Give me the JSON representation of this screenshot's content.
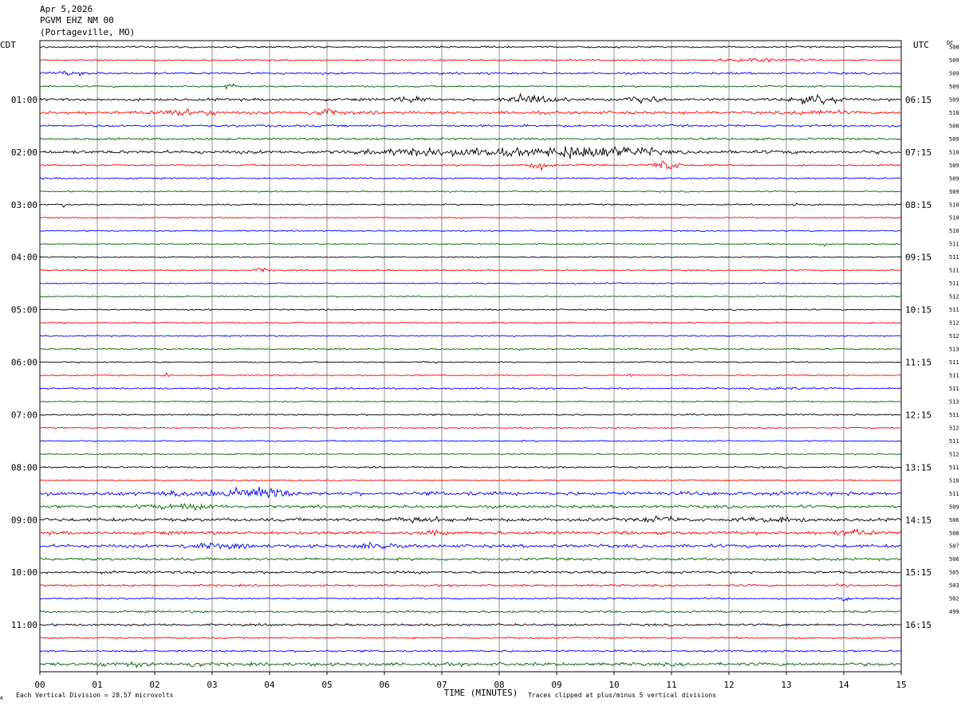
{
  "header": {
    "date": "Apr 5,2026",
    "station": "PGVM EHZ NM 00",
    "location": "(Portageville, MO)"
  },
  "left_tz": "CDT",
  "right_tz": "UTC",
  "dc_header": "DC",
  "colors": {
    "black": "#000000",
    "red": "#ff0000",
    "blue": "#0000ff",
    "green": "#006400",
    "grid": "#777777"
  },
  "footer": {
    "scale_note": "Each Vertical Division = 28.57 microvolts",
    "clip_note": "Traces clipped at plus/minus 5 vertical divisions",
    "corner_mark": "A"
  },
  "chart_data": {
    "type": "line",
    "xlabel": "TIME (MINUTES)",
    "xlim": [
      0,
      15
    ],
    "x_ticks": [
      "00",
      "01",
      "02",
      "03",
      "04",
      "05",
      "06",
      "07",
      "08",
      "09",
      "10",
      "11",
      "12",
      "13",
      "14",
      "15"
    ],
    "series_colors_cycle": [
      "black",
      "red",
      "blue",
      "green"
    ],
    "left_hour_labels": [
      "01:00",
      "02:00",
      "03:00",
      "04:00",
      "05:00",
      "06:00",
      "07:00",
      "08:00",
      "09:00",
      "10:00",
      "11:00"
    ],
    "right_hour_labels": [
      "06:15",
      "07:15",
      "08:15",
      "09:15",
      "10:15",
      "11:15",
      "12:15",
      "13:15",
      "14:15",
      "15:15",
      "16:15"
    ],
    "hour_label_trace_index": [
      4,
      8,
      12,
      16,
      20,
      24,
      28,
      32,
      36,
      40,
      44
    ],
    "trace_count": 48,
    "dc_offsets": [
      "508",
      "509",
      "509",
      "509",
      "509",
      "510",
      "508",
      "509",
      "510",
      "509",
      "509",
      "509",
      "510",
      "510",
      "510",
      "511",
      "511",
      "511",
      "511",
      "512",
      "511",
      "512",
      "512",
      "513",
      "511",
      "511",
      "511",
      "513",
      "511",
      "512",
      "511",
      "512",
      "511",
      "510",
      "511",
      "509",
      "506",
      "508",
      "507",
      "506",
      "505",
      "503",
      "502",
      "499",
      "",
      "",
      "",
      ""
    ],
    "trace_activity": [
      {
        "trace": 0,
        "noise": 1.0,
        "events": []
      },
      {
        "trace": 1,
        "noise": 1.0,
        "events": [
          {
            "min": 12.5,
            "amp": 2.5,
            "dur": 2.2
          }
        ]
      },
      {
        "trace": 2,
        "noise": 1.3,
        "events": [
          {
            "min": 0.5,
            "amp": 2,
            "dur": 1
          }
        ]
      },
      {
        "trace": 3,
        "noise": 1.0,
        "events": [
          {
            "min": 3.3,
            "amp": 5,
            "dur": 0.3
          }
        ]
      },
      {
        "trace": 4,
        "noise": 1.6,
        "events": [
          {
            "min": 6.5,
            "amp": 4,
            "dur": 1
          },
          {
            "min": 8.6,
            "amp": 6,
            "dur": 1.4
          },
          {
            "min": 10.5,
            "amp": 4,
            "dur": 1
          },
          {
            "min": 13.5,
            "amp": 6,
            "dur": 1.2
          }
        ]
      },
      {
        "trace": 5,
        "noise": 1.8,
        "events": [
          {
            "min": 2.5,
            "amp": 4,
            "dur": 1.6
          },
          {
            "min": 5.0,
            "amp": 3,
            "dur": 1
          },
          {
            "min": 13.5,
            "amp": 3,
            "dur": 1.2
          }
        ]
      },
      {
        "trace": 6,
        "noise": 1.4,
        "events": []
      },
      {
        "trace": 7,
        "noise": 1.3,
        "events": []
      },
      {
        "trace": 8,
        "noise": 2.0,
        "events": [
          {
            "min": 7.5,
            "amp": 6,
            "dur": 4.5
          },
          {
            "min": 9.8,
            "amp": 9,
            "dur": 2.6
          }
        ]
      },
      {
        "trace": 9,
        "noise": 1.0,
        "events": [
          {
            "min": 8.7,
            "amp": 7,
            "dur": 0.6
          },
          {
            "min": 10.9,
            "amp": 9,
            "dur": 0.7
          }
        ]
      },
      {
        "trace": 10,
        "noise": 1.0,
        "events": []
      },
      {
        "trace": 11,
        "noise": 0.8,
        "events": []
      },
      {
        "trace": 12,
        "noise": 0.9,
        "events": [
          {
            "min": 0.4,
            "amp": 8,
            "dur": 0.08
          },
          {
            "min": 13.2,
            "amp": 4,
            "dur": 0.3
          }
        ]
      },
      {
        "trace": 13,
        "noise": 0.8,
        "events": []
      },
      {
        "trace": 14,
        "noise": 0.8,
        "events": []
      },
      {
        "trace": 15,
        "noise": 0.8,
        "events": [
          {
            "min": 13.6,
            "amp": 3,
            "dur": 0.3
          }
        ]
      },
      {
        "trace": 16,
        "noise": 0.8,
        "events": []
      },
      {
        "trace": 17,
        "noise": 0.8,
        "events": [
          {
            "min": 3.9,
            "amp": 3,
            "dur": 0.5
          }
        ]
      },
      {
        "trace": 18,
        "noise": 0.8,
        "events": []
      },
      {
        "trace": 19,
        "noise": 0.8,
        "events": []
      },
      {
        "trace": 20,
        "noise": 0.8,
        "events": []
      },
      {
        "trace": 21,
        "noise": 0.8,
        "events": []
      },
      {
        "trace": 22,
        "noise": 0.8,
        "events": []
      },
      {
        "trace": 23,
        "noise": 0.9,
        "events": [
          {
            "min": 11.4,
            "amp": 2,
            "dur": 0.6
          }
        ]
      },
      {
        "trace": 24,
        "noise": 0.8,
        "events": [
          {
            "min": 6.8,
            "amp": 2,
            "dur": 0.4
          }
        ]
      },
      {
        "trace": 25,
        "noise": 0.8,
        "events": [
          {
            "min": 2.2,
            "amp": 3,
            "dur": 0.2
          },
          {
            "min": 10.3,
            "amp": 2,
            "dur": 0.2
          }
        ]
      },
      {
        "trace": 26,
        "noise": 1.0,
        "events": [
          {
            "min": 13.0,
            "amp": 2,
            "dur": 1
          }
        ]
      },
      {
        "trace": 27,
        "noise": 0.8,
        "events": []
      },
      {
        "trace": 28,
        "noise": 1.0,
        "events": []
      },
      {
        "trace": 29,
        "noise": 0.8,
        "events": []
      },
      {
        "trace": 30,
        "noise": 0.8,
        "events": []
      },
      {
        "trace": 31,
        "noise": 0.8,
        "events": []
      },
      {
        "trace": 32,
        "noise": 1.0,
        "events": []
      },
      {
        "trace": 33,
        "noise": 0.8,
        "events": []
      },
      {
        "trace": 34,
        "noise": 2.2,
        "events": [
          {
            "min": 3.0,
            "amp": 5,
            "dur": 2.2
          },
          {
            "min": 3.9,
            "amp": 9,
            "dur": 1.2
          }
        ]
      },
      {
        "trace": 35,
        "noise": 1.8,
        "events": [
          {
            "min": 2.5,
            "amp": 3,
            "dur": 2
          }
        ]
      },
      {
        "trace": 36,
        "noise": 2.0,
        "events": [
          {
            "min": 6.5,
            "amp": 3,
            "dur": 1.5
          },
          {
            "min": 10.8,
            "amp": 3,
            "dur": 1
          },
          {
            "min": 12.8,
            "amp": 4,
            "dur": 1.5
          }
        ]
      },
      {
        "trace": 37,
        "noise": 2.0,
        "events": [
          {
            "min": 6.9,
            "amp": 3,
            "dur": 0.5
          },
          {
            "min": 14.2,
            "amp": 3,
            "dur": 1
          }
        ]
      },
      {
        "trace": 38,
        "noise": 2.0,
        "events": [
          {
            "min": 3.0,
            "amp": 3,
            "dur": 1.5
          },
          {
            "min": 5.8,
            "amp": 4,
            "dur": 0.8
          }
        ]
      },
      {
        "trace": 39,
        "noise": 1.6,
        "events": []
      },
      {
        "trace": 40,
        "noise": 1.6,
        "events": []
      },
      {
        "trace": 41,
        "noise": 1.3,
        "events": [
          {
            "min": 13.9,
            "amp": 2,
            "dur": 0.5
          }
        ]
      },
      {
        "trace": 42,
        "noise": 1.0,
        "events": [
          {
            "min": 14.0,
            "amp": 3,
            "dur": 0.3
          }
        ]
      },
      {
        "trace": 43,
        "noise": 1.3,
        "events": []
      },
      {
        "trace": 44,
        "noise": 1.3,
        "events": []
      },
      {
        "trace": 45,
        "noise": 1.0,
        "events": []
      },
      {
        "trace": 46,
        "noise": 1.2,
        "events": []
      },
      {
        "trace": 47,
        "noise": 2.0,
        "events": [
          {
            "min": 1.5,
            "amp": 3,
            "dur": 1
          },
          {
            "min": 2.7,
            "amp": 4,
            "dur": 0.4
          }
        ]
      }
    ]
  }
}
